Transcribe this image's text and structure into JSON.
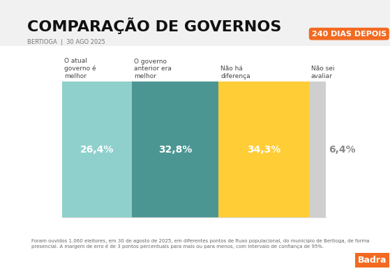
{
  "chart_data": {
    "type": "bar",
    "orientation": "horizontal",
    "stacked": true,
    "title": "COMPARAÇÃO DE GOVERNOS",
    "subtitle": "BERTIOGA  |  30 AGO 2025",
    "badge": "240 DIAS DEPOIS",
    "note": "Foram ouvidos 1.060 eleitores, em 30 de agosto de 2025, em diferentes pontos de fluxo populacional, do município de Bertioga, de forma presencial. A margem de erro é de 3 pontos percentuais para mais ou para menos, com intervalo de confiança de 95%.",
    "source": "Badra",
    "categories": [
      null
    ],
    "series": [
      {
        "name": "O atual governo é melhor",
        "color": "#8fd0cc",
        "values": [
          26.4
        ],
        "value_labels": [
          "26,4%"
        ]
      },
      {
        "name": "O governo anterior era melhor",
        "color": "#4b9692",
        "values": [
          32.8
        ],
        "value_labels": [
          "32,8%"
        ]
      },
      {
        "name": "Não há diferença",
        "color": "#ffcd35",
        "values": [
          34.3
        ],
        "value_labels": [
          "34,3%"
        ]
      },
      {
        "name": "Não sei avaliar",
        "color": "#cfcfcf",
        "values": [
          6.4
        ],
        "value_labels": [
          "6,4%"
        ]
      }
    ],
    "xlim": [
      0,
      100
    ],
    "xticks": [],
    "data_labels": true,
    "tick_labels": false,
    "grid": false
  }
}
